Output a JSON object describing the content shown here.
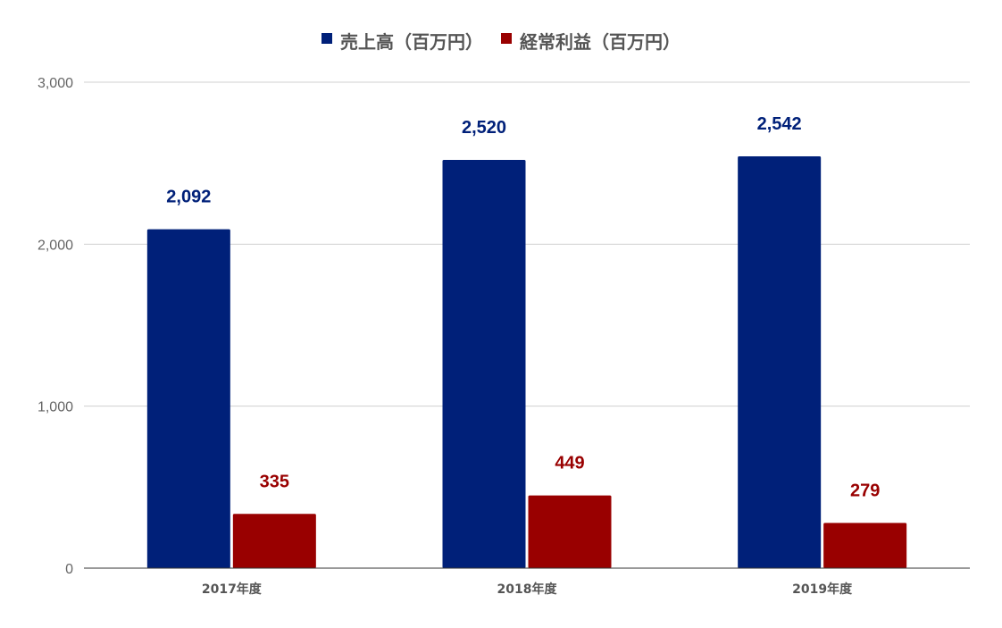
{
  "chart_data": {
    "type": "bar",
    "categories": [
      "2017年度",
      "2018年度",
      "2019年度"
    ],
    "series": [
      {
        "name": "売上高（百万円）",
        "values": [
          2092,
          2520,
          2542
        ],
        "color": "#002079"
      },
      {
        "name": "経常利益（百万円）",
        "values": [
          335,
          449,
          279
        ],
        "color": "#990000"
      }
    ],
    "data_labels": [
      [
        "2,092",
        "2,520",
        "2,542"
      ],
      [
        "335",
        "449",
        "279"
      ]
    ],
    "title": "",
    "xlabel": "",
    "ylabel": "",
    "ylim": [
      0,
      3000
    ],
    "yticks": [
      0,
      1000,
      2000,
      3000
    ],
    "ytick_labels": [
      "0",
      "1,000",
      "2,000",
      "3,000"
    ],
    "grid": true,
    "legend_position": "top-center"
  }
}
